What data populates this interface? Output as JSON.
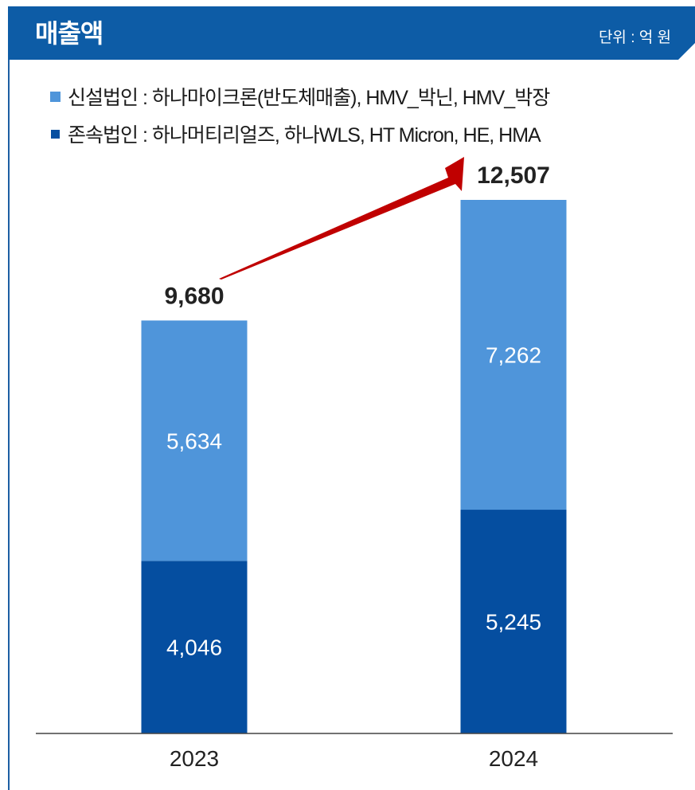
{
  "header": {
    "title": "매출액",
    "unit": "단위 : 억 원"
  },
  "legend": [
    {
      "label": "신설법인 : 하나마이크론(반도체매출), HMV_박닌, HMV_박장",
      "color": "#4f95da"
    },
    {
      "label": "존속법인 :  하나머티리얼즈, 하나WLS, HT Micron, HE, HMA",
      "color": "#054ea0"
    }
  ],
  "colors": {
    "header": "#0d5ca6",
    "new_entity": "#4f95da",
    "existing_entity": "#054ea0",
    "arrow": "#c00000"
  },
  "chart_data": {
    "type": "bar",
    "stacked": true,
    "categories": [
      "2023",
      "2024"
    ],
    "series": [
      {
        "name": "존속법인",
        "values": [
          4046,
          5245
        ]
      },
      {
        "name": "신설법인",
        "values": [
          5634,
          7262
        ]
      }
    ],
    "value_labels": [
      [
        "4,046",
        "5,245"
      ],
      [
        "5,634",
        "7,262"
      ]
    ],
    "totals": [
      9680,
      12507
    ],
    "total_labels": [
      "9,680",
      "12,507"
    ],
    "ylim": [
      0,
      12507
    ],
    "annotations": [
      "growth-arrow"
    ],
    "grid": false
  }
}
